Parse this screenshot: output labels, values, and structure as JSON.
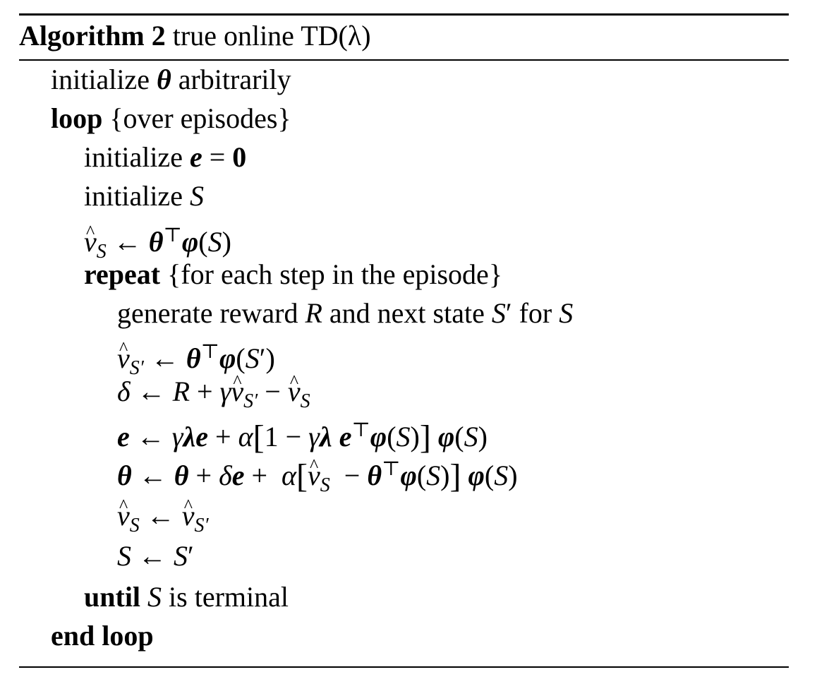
{
  "caption": {
    "label": "Algorithm 2",
    "title": "true online TD(λ)"
  },
  "lines": [
    {
      "indent": 1,
      "text": "initialize θ arbitrarily"
    },
    {
      "indent": 1,
      "text": "loop {over episodes}"
    },
    {
      "indent": 2,
      "text": "initialize e = 0"
    },
    {
      "indent": 2,
      "text": "initialize S"
    },
    {
      "indent": 2,
      "text": "v̂_S ← θ⊤ φ(S)"
    },
    {
      "indent": 2,
      "text": "repeat {for each step in the episode}"
    },
    {
      "indent": 3,
      "text": "generate reward R and next state S′ for S"
    },
    {
      "indent": 3,
      "text": "v̂_S′ ← θ⊤ φ(S′)"
    },
    {
      "indent": 3,
      "text": "δ ← R + γv̂_S′ − v̂_S"
    },
    {
      "indent": 3,
      "text": "e ← γλe + α[1 − γλ e⊤ φ(S)] φ(S)"
    },
    {
      "indent": 3,
      "text": "θ ← θ + δe + α[v̂_S − θ⊤ φ(S)] φ(S)"
    },
    {
      "indent": 3,
      "text": "v̂_S ← v̂_S′"
    },
    {
      "indent": 3,
      "text": "S ← S′"
    },
    {
      "indent": 2,
      "text": "until S is terminal"
    },
    {
      "indent": 1,
      "text": "end loop"
    }
  ],
  "keywords": {
    "loop": "loop",
    "repeat": "repeat",
    "until": "until",
    "end_loop": "end loop"
  }
}
